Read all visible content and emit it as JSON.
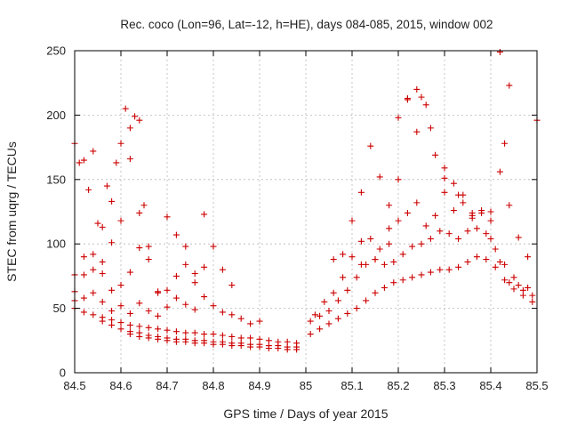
{
  "chart_data": {
    "type": "scatter",
    "title": "Rec. coco (Lon=96, Lat=-12, h=HE), days 084-085, 2015, window 002",
    "xlabel": "GPS time / Days of year 2015",
    "ylabel": "STEC from uqrg / TECUs",
    "xlim": [
      84.5,
      85.5
    ],
    "ylim": [
      0,
      250
    ],
    "xticks": [
      84.5,
      84.6,
      84.7,
      84.8,
      84.9,
      85,
      85.1,
      85.2,
      85.3,
      85.4,
      85.5
    ],
    "xtick_labels": [
      "84.5",
      "84.6",
      "84.7",
      "84.8",
      "84.9",
      "85",
      "85.1",
      "85.2",
      "85.3",
      "85.4",
      "85.5"
    ],
    "yticks": [
      0,
      50,
      100,
      150,
      200,
      250
    ],
    "ytick_labels": [
      "0",
      "50",
      "100",
      "150",
      "200",
      "250"
    ],
    "grid": true,
    "marker": "+",
    "color": "#cc0000",
    "series": [
      {
        "x": [
          84.5,
          84.51,
          84.52,
          84.53,
          84.54,
          84.55,
          84.56,
          84.57,
          84.58,
          84.59,
          84.6,
          84.61,
          84.62,
          84.63,
          84.64,
          84.65
        ],
        "y": [
          178,
          163,
          165,
          142,
          172,
          116,
          113,
          145,
          133,
          163,
          178,
          205,
          190,
          199,
          196,
          130
        ]
      },
      {
        "x": [
          84.5,
          84.52,
          84.54,
          84.56,
          84.58,
          84.6,
          84.62,
          84.64,
          84.66,
          84.68,
          84.7,
          84.72,
          84.74,
          84.76,
          84.78
        ],
        "y": [
          76,
          90,
          92,
          86,
          101,
          118,
          166,
          124,
          98,
          63,
          121,
          107,
          98,
          77,
          123
        ]
      },
      {
        "x": [
          84.5,
          84.52,
          84.54,
          84.56,
          84.58,
          84.6,
          84.62,
          84.64,
          84.66,
          84.68,
          84.7,
          84.72,
          84.74,
          84.76,
          84.78,
          84.8,
          84.82,
          84.84
        ],
        "y": [
          63,
          76,
          80,
          77,
          64,
          68,
          78,
          97,
          88,
          62,
          64,
          75,
          84,
          70,
          82,
          98,
          80,
          68
        ]
      },
      {
        "x": [
          84.5,
          84.52,
          84.54,
          84.56,
          84.58,
          84.6,
          84.62,
          84.64,
          84.66,
          84.68,
          84.7,
          84.72,
          84.74,
          84.76,
          84.78,
          84.8,
          84.82,
          84.84,
          84.86,
          84.88,
          84.9
        ],
        "y": [
          56,
          58,
          62,
          55,
          48,
          52,
          46,
          54,
          48,
          44,
          51,
          58,
          53,
          49,
          59,
          52,
          47,
          45,
          42,
          38,
          40
        ]
      },
      {
        "x": [
          84.5,
          84.52,
          84.54,
          84.56,
          84.58,
          84.6,
          84.62,
          84.64,
          84.66,
          84.68,
          84.7,
          84.72,
          84.74,
          84.76,
          84.78,
          84.8,
          84.82,
          84.84,
          84.86,
          84.88,
          84.9,
          84.92,
          84.94,
          84.96,
          84.98
        ],
        "y": [
          50,
          47,
          45,
          43,
          41,
          39,
          37,
          36,
          35,
          34,
          33,
          32,
          31,
          31,
          30,
          30,
          29,
          28,
          27,
          27,
          26,
          25,
          24,
          24,
          23
        ]
      },
      {
        "x": [
          84.56,
          84.58,
          84.6,
          84.62,
          84.64,
          84.66,
          84.68,
          84.7,
          84.72,
          84.74,
          84.76,
          84.78,
          84.8,
          84.82,
          84.84,
          84.86,
          84.88,
          84.9,
          84.92,
          84.94,
          84.96,
          84.98
        ],
        "y": [
          40,
          37,
          34,
          32,
          31,
          29,
          28,
          27,
          26,
          26,
          25,
          25,
          24,
          24,
          23,
          23,
          22,
          22,
          21,
          21,
          20,
          20
        ]
      },
      {
        "x": [
          84.62,
          84.64,
          84.66,
          84.68,
          84.7,
          84.72,
          84.74,
          84.76,
          84.78,
          84.8,
          84.82,
          84.84,
          84.86,
          84.88,
          84.9,
          84.92,
          84.94,
          84.96,
          84.98
        ],
        "y": [
          30,
          28,
          27,
          26,
          25,
          24,
          24,
          23,
          23,
          22,
          22,
          21,
          21,
          20,
          20,
          19,
          19,
          18,
          18
        ]
      },
      {
        "x": [
          85.01,
          85.03,
          85.05,
          85.07,
          85.09,
          85.11,
          85.13,
          85.15,
          85.17,
          85.19,
          85.21,
          85.23,
          85.25,
          85.27,
          85.29,
          85.31,
          85.33,
          85.35,
          85.37,
          85.39,
          85.41,
          85.43,
          85.45,
          85.47,
          85.49
        ],
        "y": [
          30,
          34,
          38,
          42,
          46,
          50,
          56,
          62,
          66,
          70,
          72,
          74,
          76,
          78,
          80,
          80,
          82,
          86,
          90,
          88,
          82,
          72,
          65,
          60,
          55
        ]
      },
      {
        "x": [
          85.01,
          85.03,
          85.05,
          85.07,
          85.09,
          85.11,
          85.13,
          85.15,
          85.17,
          85.19,
          85.21,
          85.23,
          85.25,
          85.27,
          85.29,
          85.31,
          85.33,
          85.35,
          85.37,
          85.39,
          85.41,
          85.43,
          85.45,
          85.47,
          85.49
        ],
        "y": [
          40,
          44,
          48,
          56,
          64,
          74,
          84,
          88,
          84,
          86,
          92,
          98,
          100,
          104,
          110,
          108,
          104,
          110,
          112,
          108,
          96,
          84,
          74,
          64,
          60
        ]
      },
      {
        "x": [
          85.02,
          85.04,
          85.06,
          85.08,
          85.1,
          85.12,
          85.14,
          85.16,
          85.18,
          85.2,
          85.22,
          85.24,
          85.26,
          85.28,
          85.3,
          85.32,
          85.34,
          85.36,
          85.38,
          85.4,
          85.42,
          85.44,
          85.46,
          85.48
        ],
        "y": [
          45,
          55,
          62,
          74,
          90,
          102,
          104,
          96,
          112,
          118,
          124,
          132,
          114,
          122,
          140,
          126,
          132,
          122,
          124,
          118,
          86,
          70,
          68,
          66
        ]
      },
      {
        "x": [
          85.06,
          85.08,
          85.1,
          85.12,
          85.14,
          85.16,
          85.18,
          85.2,
          85.22,
          85.24,
          85.26,
          85.28,
          85.3,
          85.32,
          85.34,
          85.36,
          85.38,
          85.4,
          85.42,
          85.44,
          85.46,
          85.48,
          85.5
        ],
        "y": [
          88,
          92,
          118,
          140,
          176,
          152,
          130,
          150,
          212,
          187,
          208,
          169,
          159,
          147,
          138,
          120,
          126,
          125,
          156,
          130,
          105,
          90,
          196
        ]
      },
      {
        "x": [
          85.12,
          85.15,
          85.18,
          85.2,
          85.22,
          85.24,
          85.25,
          85.27,
          85.3,
          85.33,
          85.36,
          85.4,
          85.42,
          85.43,
          85.44
        ],
        "y": [
          84,
          88,
          100,
          198,
          213,
          220,
          214,
          190,
          151,
          138,
          124,
          104,
          249,
          178,
          223
        ]
      }
    ]
  }
}
